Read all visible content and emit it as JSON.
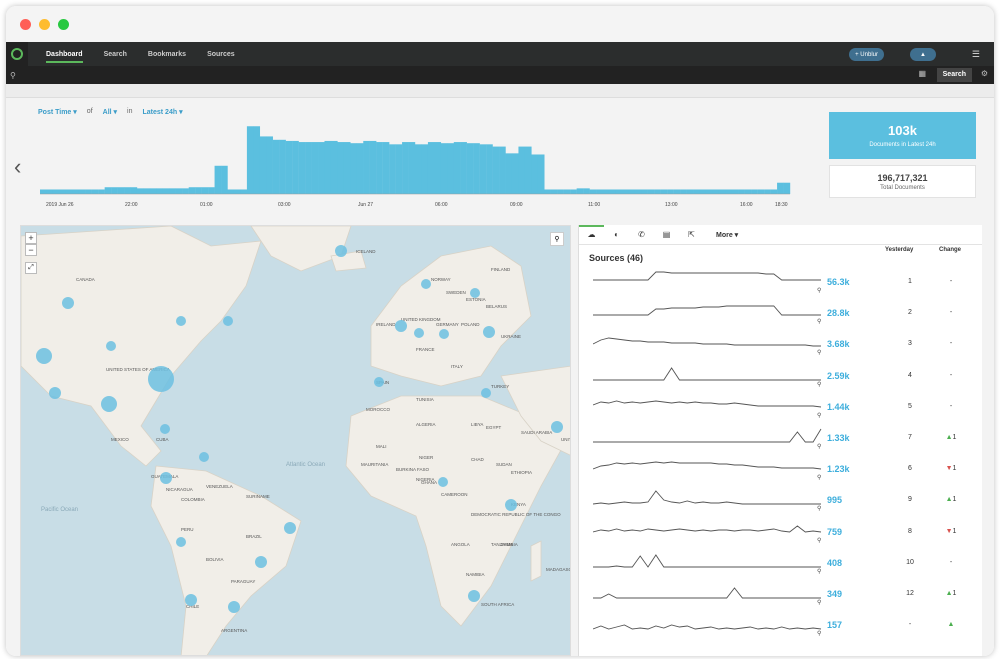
{
  "window": {
    "colors": {
      "close": "#ff5f57",
      "min": "#febc2e",
      "max": "#28c840"
    }
  },
  "nav": {
    "tabs": [
      {
        "label": "Dashboard",
        "active": true
      },
      {
        "label": "Search"
      },
      {
        "label": "Bookmarks"
      },
      {
        "label": "Sources"
      }
    ],
    "pill1": "+ Unblur",
    "pill2": "▲",
    "menu_icon": "hamburger-icon"
  },
  "searchbar": {
    "button": "Search"
  },
  "filters": {
    "time_field": "Post Time ▾",
    "of": "of",
    "scope": "All ▾",
    "in": "in",
    "range": "Latest 24h ▾"
  },
  "stats": {
    "docs_latest": "103k",
    "docs_latest_label": "Documents in Latest 24h",
    "total": "196,717,321",
    "total_label": "Total Documents"
  },
  "histogram": {
    "x_labels": [
      "2019 Jun 26",
      "22:00",
      "01:00",
      "03:00",
      "Jun 27",
      "06:00",
      "09:00",
      "11:00",
      "13:00",
      "16:00",
      "18:30"
    ],
    "values": [
      4,
      4,
      4,
      4,
      4,
      4,
      4,
      4,
      4,
      4,
      6,
      6,
      6,
      6,
      6,
      5,
      5,
      5,
      5,
      5,
      5,
      5,
      5,
      6,
      6,
      6,
      6,
      25,
      25,
      4,
      4,
      4,
      60,
      60,
      51,
      51,
      48,
      48,
      47,
      47,
      46,
      46,
      46,
      46,
      47,
      47,
      46,
      46,
      45,
      45,
      47,
      47,
      46,
      46,
      44,
      44,
      46,
      46,
      44,
      44,
      46,
      46,
      45,
      45,
      46,
      46,
      45,
      45,
      44,
      44,
      42,
      42,
      36,
      36,
      42,
      42,
      35,
      35,
      4,
      4,
      4,
      4,
      4,
      5,
      5,
      4,
      4,
      4,
      4,
      4,
      4,
      4,
      4,
      4,
      4,
      4,
      4,
      4,
      4,
      4,
      4,
      4,
      4,
      4,
      4,
      4,
      4,
      4,
      4,
      4,
      4,
      4,
      4,
      4,
      10,
      10
    ]
  },
  "map": {
    "labels": [
      "CANADA",
      "UNITED STATES OF AMERICA",
      "MEXICO",
      "CUBA",
      "VENEZUELA",
      "COLOMBIA",
      "PERU",
      "BRAZIL",
      "BOLIVIA",
      "PARAGUAY",
      "CHILE",
      "ARGENTINA",
      "SURINAME",
      "GUATEMALA",
      "NICARAGUA",
      "Atlantic Ocean",
      "Pacific Ocean",
      "ICELAND",
      "IRELAND",
      "UNITED KINGDOM",
      "NORWAY",
      "SWEDEN",
      "FINLAND",
      "ESTONIA",
      "BELARUS",
      "POLAND",
      "GERMANY",
      "UKRAINE",
      "FRANCE",
      "SPAIN",
      "ITALY",
      "TURKEY",
      "TUNISIA",
      "MOROCCO",
      "ALGERIA",
      "LIBYA",
      "EGYPT",
      "SAUDI ARABIA",
      "UNITED ARAB EMIRATES",
      "MALI",
      "NIGER",
      "CHAD",
      "SUDAN",
      "ETHIOPIA",
      "NIGERIA",
      "CAMEROON",
      "KENYA",
      "DEMOCRATIC REPUBLIC OF THE CONGO",
      "TANZANIA",
      "ANGOLA",
      "ZAMBIA",
      "NAMIBIA",
      "SOUTH AFRICA",
      "MADAGASCAR",
      "MAURITANIA",
      "BURKINA FASO",
      "GHANA"
    ]
  },
  "panel": {
    "title": "Sources (46)",
    "more": "More ▾",
    "col_yesterday": "Yesterday",
    "col_change": "Change",
    "rows": [
      {
        "value": "56.3k",
        "yesterday": "1",
        "change": "-",
        "dir": "none",
        "line": [
          10,
          10,
          10,
          10,
          10,
          10,
          10,
          10,
          2,
          2,
          3,
          3,
          3,
          3,
          3,
          3,
          3,
          3,
          3,
          3,
          3,
          3,
          4,
          4,
          10,
          10,
          10,
          10,
          10,
          10
        ]
      },
      {
        "value": "28.8k",
        "yesterday": "2",
        "change": "-",
        "dir": "none",
        "line": [
          14,
          14,
          14,
          14,
          14,
          14,
          14,
          14,
          8,
          8,
          7,
          7,
          7,
          7,
          6,
          6,
          6,
          5,
          5,
          5,
          5,
          5,
          5,
          5,
          14,
          14,
          14,
          14,
          14,
          14
        ]
      },
      {
        "value": "3.68k",
        "yesterday": "3",
        "change": "-",
        "dir": "none",
        "line": [
          12,
          8,
          6,
          7,
          8,
          9,
          9,
          10,
          10,
          10,
          11,
          11,
          11,
          11,
          12,
          12,
          12,
          12,
          13,
          13,
          13,
          13,
          13,
          13,
          13,
          13,
          13,
          13,
          14,
          14
        ]
      },
      {
        "value": "2.59k",
        "yesterday": "4",
        "change": "-",
        "dir": "none",
        "line": [
          16,
          16,
          16,
          16,
          16,
          16,
          16,
          16,
          16,
          16,
          4,
          16,
          16,
          16,
          16,
          16,
          16,
          16,
          16,
          16,
          16,
          16,
          16,
          16,
          16,
          16,
          16,
          16,
          16,
          16
        ]
      },
      {
        "value": "1.44k",
        "yesterday": "5",
        "change": "-",
        "dir": "none",
        "line": [
          10,
          7,
          8,
          6,
          8,
          7,
          8,
          7,
          6,
          7,
          8,
          7,
          8,
          7,
          8,
          8,
          9,
          9,
          8,
          9,
          10,
          11,
          11,
          11,
          11,
          11,
          11,
          11,
          11,
          12
        ]
      },
      {
        "value": "1.33k",
        "yesterday": "7",
        "change": "1",
        "dir": "up",
        "line": [
          16,
          16,
          16,
          16,
          16,
          16,
          16,
          16,
          16,
          16,
          16,
          16,
          16,
          16,
          16,
          16,
          16,
          16,
          16,
          16,
          16,
          16,
          16,
          16,
          16,
          16,
          6,
          16,
          16,
          3
        ]
      },
      {
        "value": "1.23k",
        "yesterday": "6",
        "change": "1",
        "dir": "down",
        "line": [
          12,
          9,
          8,
          6,
          7,
          6,
          7,
          6,
          5,
          6,
          5,
          6,
          6,
          6,
          6,
          6,
          7,
          7,
          8,
          8,
          9,
          10,
          10,
          10,
          11,
          11,
          11,
          11,
          11,
          12
        ]
      },
      {
        "value": "995",
        "yesterday": "9",
        "change": "1",
        "dir": "up",
        "line": [
          16,
          15,
          16,
          15,
          14,
          15,
          15,
          14,
          3,
          12,
          14,
          15,
          13,
          15,
          14,
          15,
          15,
          14,
          15,
          16,
          16,
          16,
          16,
          16,
          16,
          16,
          16,
          16,
          16,
          16
        ]
      },
      {
        "value": "759",
        "yesterday": "8",
        "change": "1",
        "dir": "down",
        "line": [
          12,
          10,
          11,
          9,
          11,
          10,
          11,
          9,
          10,
          11,
          10,
          9,
          10,
          11,
          10,
          11,
          10,
          10,
          11,
          10,
          10,
          11,
          10,
          9,
          11,
          12,
          6,
          12,
          11,
          12
        ]
      },
      {
        "value": "408",
        "yesterday": "10",
        "change": "-",
        "dir": "none",
        "line": [
          16,
          16,
          16,
          15,
          16,
          16,
          5,
          16,
          4,
          16,
          16,
          16,
          16,
          16,
          16,
          16,
          16,
          16,
          16,
          16,
          16,
          16,
          16,
          16,
          16,
          16,
          16,
          16,
          16,
          16
        ]
      },
      {
        "value": "349",
        "yesterday": "12",
        "change": "1",
        "dir": "up",
        "line": [
          16,
          16,
          12,
          16,
          16,
          16,
          16,
          16,
          16,
          16,
          16,
          16,
          16,
          16,
          16,
          16,
          16,
          16,
          6,
          16,
          16,
          16,
          16,
          16,
          16,
          16,
          16,
          16,
          16,
          16
        ]
      },
      {
        "value": "157",
        "yesterday": "-",
        "change": "",
        "dir": "up",
        "line": [
          16,
          13,
          16,
          14,
          12,
          16,
          15,
          16,
          13,
          15,
          12,
          14,
          13,
          16,
          15,
          14,
          16,
          15,
          16,
          15,
          14,
          16,
          15,
          16,
          14,
          16,
          15,
          16,
          15,
          16
        ]
      }
    ]
  }
}
